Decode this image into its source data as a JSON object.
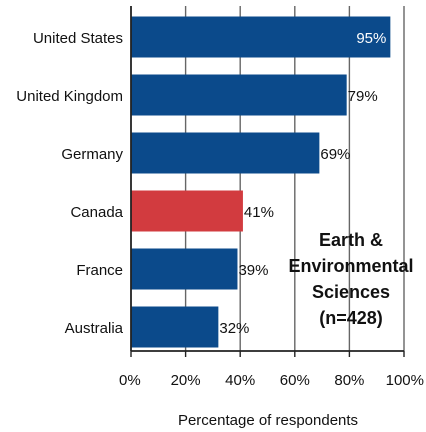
{
  "chart_data": {
    "type": "bar",
    "orientation": "horizontal",
    "categories": [
      "United States",
      "United Kingdom",
      "Germany",
      "Canada",
      "France",
      "Australia"
    ],
    "values": [
      95,
      79,
      69,
      41,
      39,
      32
    ],
    "value_labels": [
      "95%",
      "79%",
      "69%",
      "41%",
      "39%",
      "32%"
    ],
    "bar_colors": [
      "#0b4a8b",
      "#0b4a8b",
      "#0b4a8b",
      "#d23b3f",
      "#0b4a8b",
      "#0b4a8b"
    ],
    "xlabel": "Percentage of respondents",
    "xlim": [
      0,
      100
    ],
    "xticks": [
      0,
      20,
      40,
      60,
      80,
      100
    ],
    "xtick_labels": [
      "0%",
      "20%",
      "40%",
      "60%",
      "80%",
      "100%"
    ],
    "grid": "vertical",
    "annotation": {
      "lines": [
        "Earth &",
        "Environmental",
        "Sciences",
        "(n=428)"
      ],
      "placement": "lower-right"
    }
  },
  "colors": {
    "bar_default": "#0b4a8b",
    "bar_highlight": "#d23b3f",
    "axis": "#222222",
    "grid": "#666666",
    "text": "#111111",
    "label_inside": "#ffffff"
  }
}
